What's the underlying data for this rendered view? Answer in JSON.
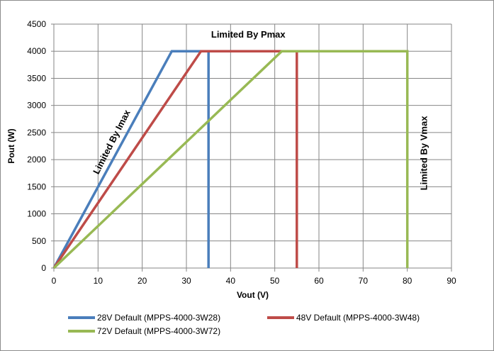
{
  "chart_data": {
    "type": "line",
    "title": "",
    "xlabel": "Vout (V)",
    "ylabel": "Pout (W)",
    "xlim": [
      0,
      90
    ],
    "ylim": [
      0,
      4500
    ],
    "xticks": [
      0,
      10,
      20,
      30,
      40,
      50,
      60,
      70,
      80,
      90
    ],
    "yticks": [
      0,
      500,
      1000,
      1500,
      2000,
      2500,
      3000,
      3500,
      4000,
      4500
    ],
    "grid": true,
    "legend_position": "bottom",
    "series": [
      {
        "name": "28V Default (MPPS-4000-3W28)",
        "color": "#4a7ebb",
        "points": [
          [
            0,
            0
          ],
          [
            26.7,
            4000
          ],
          [
            35,
            4000
          ],
          [
            35,
            0
          ]
        ]
      },
      {
        "name": "48V Default (MPPS-4000-3W48)",
        "color": "#be4b48",
        "points": [
          [
            0,
            0
          ],
          [
            33.3,
            4000
          ],
          [
            55,
            4000
          ],
          [
            55,
            0
          ]
        ]
      },
      {
        "name": "72V Default (MPPS-4000-3W72)",
        "color": "#98b954",
        "points": [
          [
            0,
            0
          ],
          [
            51.6,
            4000
          ],
          [
            80,
            4000
          ],
          [
            80,
            0
          ]
        ]
      }
    ],
    "annotations": [
      {
        "text": "Limited By Pmax",
        "x": 44,
        "y": 4250,
        "rotation": 0
      },
      {
        "text": "Limited By Imax",
        "x": 13.7,
        "y": 2300,
        "rotation": -63
      },
      {
        "text": "Limited  By Vmax",
        "x": 84.5,
        "y": 2120,
        "rotation": -90
      }
    ]
  }
}
